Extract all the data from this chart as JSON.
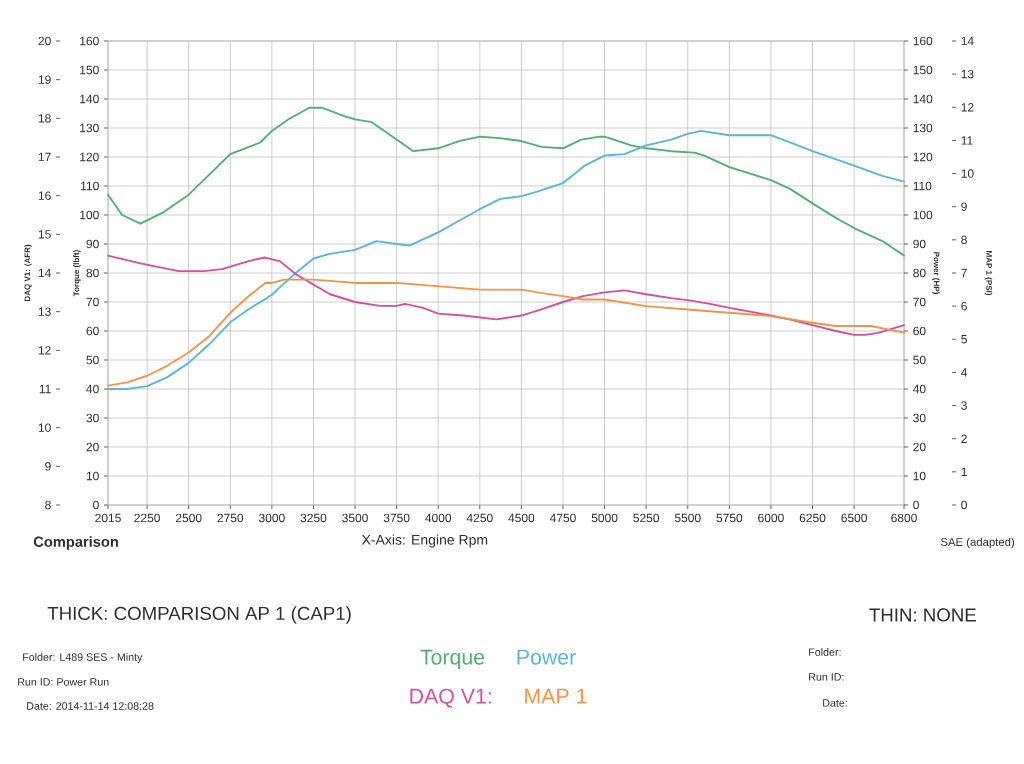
{
  "chart_data": [
    {
      "type": "line",
      "xlabel": "X-Axis: Engine Rpm",
      "ylabel": "Torque (lbft)",
      "y2label": "Power (HP)",
      "xlim": [
        2015,
        6800
      ],
      "xticks": [
        2015,
        2250,
        2500,
        2750,
        3000,
        3250,
        3500,
        3750,
        4000,
        4250,
        4500,
        4750,
        5000,
        5250,
        5500,
        5750,
        6000,
        6250,
        6500,
        6800
      ],
      "ylim": [
        0,
        160
      ],
      "yticks": [
        0,
        10,
        20,
        30,
        40,
        50,
        60,
        70,
        80,
        90,
        100,
        110,
        120,
        130,
        140,
        150,
        160
      ],
      "y2lim": [
        0,
        160
      ],
      "y2ticks": [
        0,
        10,
        20,
        30,
        40,
        50,
        60,
        70,
        80,
        90,
        100,
        110,
        120,
        130,
        140,
        150,
        160
      ],
      "grid": true,
      "legend": "bottom",
      "series": [
        {
          "name": "Torque",
          "color": "#50b070",
          "axis": "y",
          "x": [
            2015,
            2100,
            2210,
            2350,
            2500,
            2625,
            2750,
            2930,
            3000,
            3100,
            3225,
            3300,
            3440,
            3500,
            3600,
            3750,
            3850,
            4000,
            4125,
            4250,
            4370,
            4500,
            4620,
            4750,
            4860,
            4970,
            5000,
            5160,
            5250,
            5400,
            5540,
            5600,
            5750,
            5890,
            6000,
            6115,
            6250,
            6390,
            6500,
            6670,
            6800
          ],
          "values": [
            107,
            100,
            97,
            101,
            107,
            114,
            121,
            125,
            129,
            133,
            137,
            137,
            134,
            133,
            132,
            126,
            122,
            123,
            125.5,
            127,
            126.5,
            125.5,
            123.5,
            123,
            126,
            127,
            127,
            124,
            123,
            122,
            121.5,
            120.5,
            116.5,
            114,
            112,
            109,
            104,
            99,
            95.5,
            91,
            86
          ]
        },
        {
          "name": "Power",
          "color": "#5ab4dc",
          "axis": "y2",
          "x": [
            2015,
            2130,
            2250,
            2370,
            2500,
            2625,
            2750,
            2860,
            2960,
            3000,
            3075,
            3155,
            3250,
            3340,
            3500,
            3630,
            3750,
            3830,
            4000,
            4125,
            4250,
            4370,
            4500,
            4590,
            4750,
            4880,
            5000,
            5120,
            5250,
            5400,
            5500,
            5580,
            5750,
            5890,
            6000,
            6115,
            6250,
            6500,
            6670,
            6800
          ],
          "values": [
            40,
            40,
            41,
            44,
            49,
            55.5,
            63,
            67.5,
            71,
            72.5,
            76.5,
            80.5,
            85,
            86.5,
            88,
            91,
            90,
            89.5,
            94,
            98,
            102,
            105.5,
            106.5,
            108,
            111,
            117,
            120.5,
            121,
            124,
            126,
            128,
            129,
            127.5,
            127.5,
            127.5,
            125,
            122,
            117,
            113.5,
            111.5
          ]
        }
      ],
      "annotations": [
        "Comparison",
        "SAE (adapted)",
        "THICK: COMPARISON AP 1 (CAP1)",
        "THIN: NONE",
        "Folder: L489 SES - Minty",
        "Run ID: Power Run",
        "Date: 2014-11-14 12:08:28",
        "Folder:",
        "Run ID:",
        "Date:"
      ]
    },
    {
      "type": "line",
      "tick_labels": "y",
      "ylabel": "DAQ V1: (AFR)",
      "y2label": "MAP 1 (PSI)",
      "xlim": [
        2015,
        6800
      ],
      "ylim": [
        8,
        20
      ],
      "yticks": [
        8,
        9,
        10,
        11,
        12,
        13,
        14,
        15,
        16,
        17,
        18,
        19,
        20
      ],
      "y2lim": [
        0,
        14
      ],
      "y2ticks": [
        0,
        1,
        2,
        3,
        4,
        5,
        6,
        7,
        8,
        9,
        10,
        11,
        12,
        13,
        14
      ],
      "legend": "bottom",
      "series": [
        {
          "name": "DAQ V1:",
          "color": "#d2509e",
          "axis": "y",
          "x": [
            2015,
            2210,
            2440,
            2590,
            2700,
            2815,
            2900,
            2960,
            3050,
            3150,
            3250,
            3350,
            3500,
            3650,
            3750,
            3800,
            3910,
            4000,
            4150,
            4250,
            4350,
            4500,
            4615,
            4750,
            4870,
            5000,
            5120,
            5250,
            5400,
            5500,
            5635,
            5750,
            5875,
            6000,
            6110,
            6250,
            6390,
            6500,
            6565,
            6645,
            6800
          ],
          "values": [
            14.45,
            14.25,
            14.05,
            14.05,
            14.1,
            14.25,
            14.35,
            14.4,
            14.3,
            13.95,
            13.7,
            13.45,
            13.25,
            13.15,
            13.15,
            13.2,
            13.1,
            12.95,
            12.9,
            12.85,
            12.8,
            12.9,
            13.05,
            13.25,
            13.4,
            13.5,
            13.55,
            13.45,
            13.35,
            13.3,
            13.2,
            13.1,
            13.0,
            12.9,
            12.8,
            12.65,
            12.5,
            12.4,
            12.4,
            12.45,
            12.65
          ]
        },
        {
          "name": "MAP 1",
          "color": "#f09446",
          "axis": "y2",
          "x": [
            2015,
            2130,
            2250,
            2370,
            2500,
            2625,
            2750,
            2860,
            2960,
            3000,
            3075,
            3250,
            3500,
            3670,
            3750,
            4000,
            4250,
            4500,
            4615,
            4750,
            4870,
            5000,
            5250,
            5500,
            5750,
            6000,
            6250,
            6390,
            6500,
            6600,
            6800
          ],
          "values": [
            3.6,
            3.7,
            3.9,
            4.2,
            4.6,
            5.1,
            5.8,
            6.3,
            6.7,
            6.7,
            6.8,
            6.8,
            6.7,
            6.7,
            6.7,
            6.6,
            6.5,
            6.5,
            6.4,
            6.3,
            6.2,
            6.2,
            6.0,
            5.9,
            5.8,
            5.7,
            5.5,
            5.4,
            5.4,
            5.4,
            5.2
          ]
        }
      ]
    }
  ]
}
